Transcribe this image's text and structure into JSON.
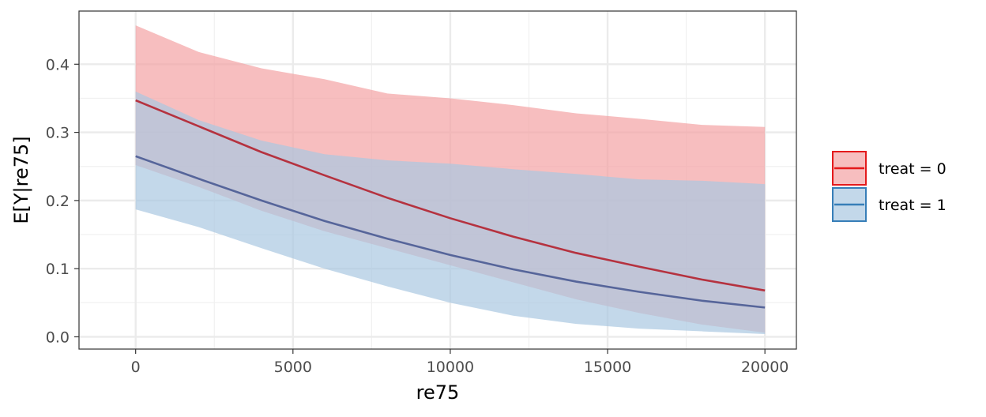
{
  "chart_data": {
    "type": "area",
    "title": "",
    "xlabel": "re75",
    "ylabel": "E[Y|re75]",
    "xlim": [
      -1800,
      21000
    ],
    "ylim": [
      -0.018,
      0.478
    ],
    "x_ticks": [
      0,
      5000,
      10000,
      15000,
      20000
    ],
    "x_tick_labels": [
      "0",
      "5000",
      "10000",
      "15000",
      "20000"
    ],
    "y_ticks": [
      0.0,
      0.1,
      0.2,
      0.3,
      0.4
    ],
    "y_tick_labels": [
      "0.0",
      "0.1",
      "0.2",
      "0.3",
      "0.4"
    ],
    "grid": true,
    "legend_position": "right",
    "x": [
      0,
      2000,
      4000,
      6000,
      8000,
      10000,
      12000,
      14000,
      16000,
      18000,
      20000
    ],
    "series": [
      {
        "name": "treat = 0",
        "color": "#e41a1c",
        "line_color": "#b5323f",
        "fill_color": "#f4a3a4",
        "values": [
          0.347,
          0.309,
          0.271,
          0.237,
          0.204,
          0.174,
          0.147,
          0.123,
          0.103,
          0.084,
          0.068
        ],
        "lower": [
          0.252,
          0.22,
          0.185,
          0.155,
          0.13,
          0.105,
          0.08,
          0.055,
          0.035,
          0.018,
          0.006
        ],
        "upper": [
          0.457,
          0.418,
          0.394,
          0.378,
          0.357,
          0.35,
          0.34,
          0.328,
          0.32,
          0.311,
          0.308
        ]
      },
      {
        "name": "treat = 1",
        "color": "#377eb8",
        "line_color": "#56659a",
        "fill_color": "#a9c7e1",
        "values": [
          0.265,
          0.232,
          0.2,
          0.17,
          0.144,
          0.12,
          0.099,
          0.081,
          0.066,
          0.053,
          0.043
        ],
        "lower": [
          0.187,
          0.161,
          0.13,
          0.1,
          0.074,
          0.05,
          0.031,
          0.019,
          0.012,
          0.008,
          0.004
        ],
        "upper": [
          0.36,
          0.318,
          0.288,
          0.268,
          0.259,
          0.254,
          0.246,
          0.239,
          0.231,
          0.229,
          0.224
        ]
      }
    ]
  }
}
